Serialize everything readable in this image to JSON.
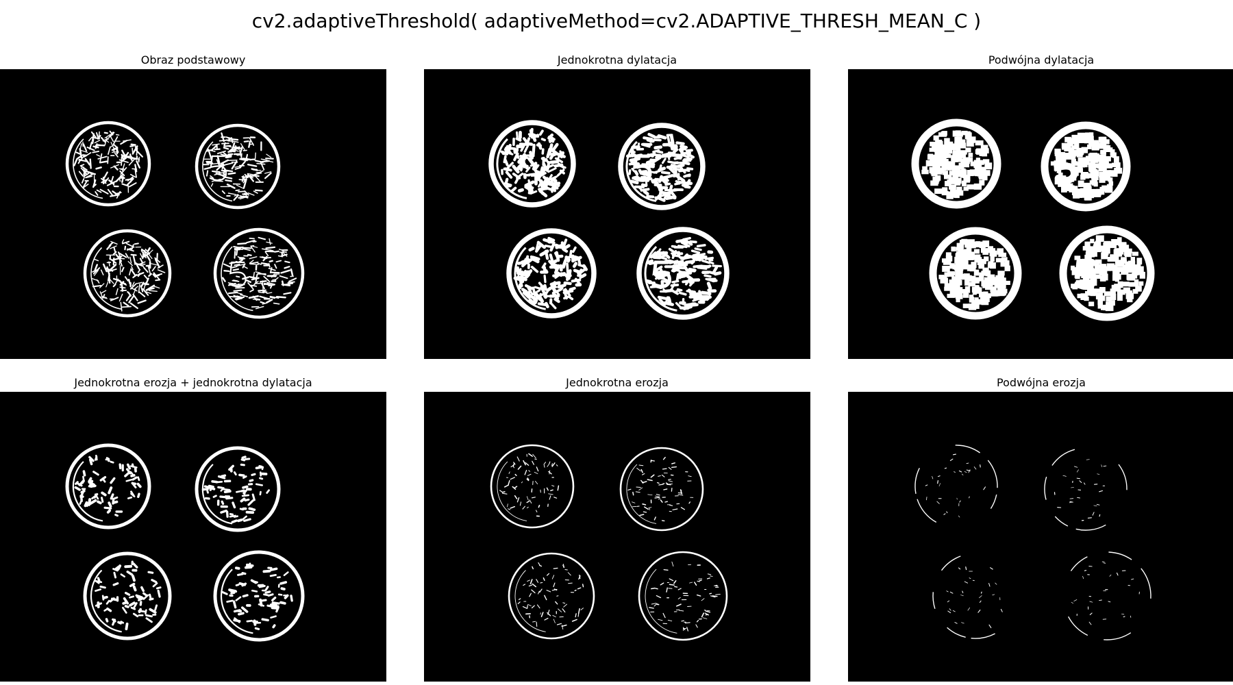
{
  "figure": {
    "suptitle": "cv2.adaptiveThreshold( adaptiveMethod=cv2.ADAPTIVE_THRESH_MEAN_C )",
    "background_color": "#ffffff",
    "image_background_color": "#000000",
    "foreground_color": "#ffffff"
  },
  "panels": [
    {
      "title": "Obraz podstawowy",
      "stage": "original"
    },
    {
      "title": "Jednokrotna dylatacja",
      "stage": "dilate1"
    },
    {
      "title": "Podwójna dylatacja",
      "stage": "dilate2"
    },
    {
      "title": "Jednokrotna erozja + jednokrotna dylatacja",
      "stage": "open"
    },
    {
      "title": "Jednokrotna erozja",
      "stage": "erode1"
    },
    {
      "title": "Podwójna erozja",
      "stage": "erode2"
    }
  ]
}
